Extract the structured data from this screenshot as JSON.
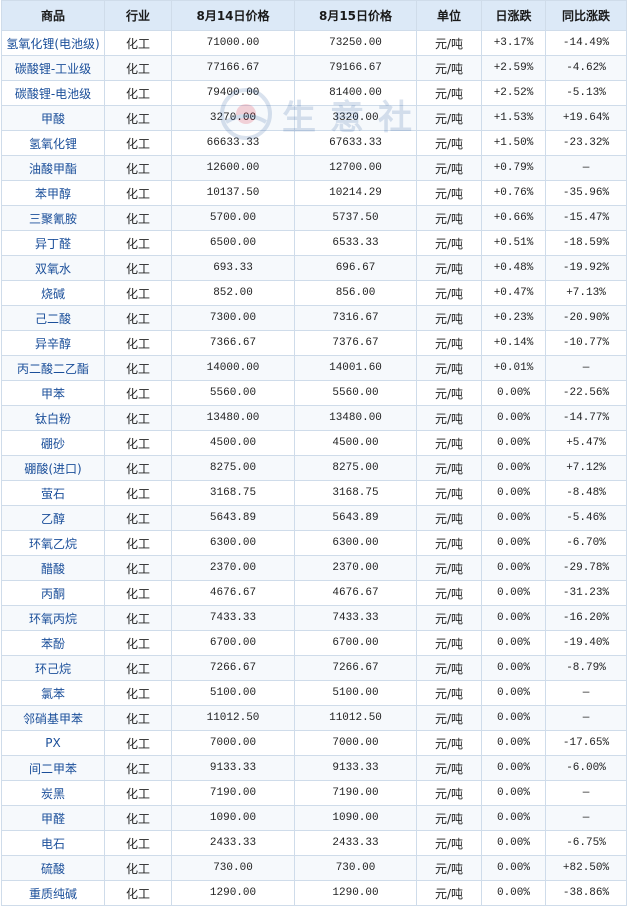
{
  "table": {
    "headers": [
      "商品",
      "行业",
      "8月14日价格",
      "8月15日价格",
      "单位",
      "日涨跌",
      "同比涨跌"
    ],
    "rows": [
      [
        "氢氧化锂(电池级)",
        "化工",
        "71000.00",
        "73250.00",
        "元/吨",
        "+3.17%",
        "-14.49%"
      ],
      [
        "碳酸锂-工业级",
        "化工",
        "77166.67",
        "79166.67",
        "元/吨",
        "+2.59%",
        "-4.62%"
      ],
      [
        "碳酸锂-电池级",
        "化工",
        "79400.00",
        "81400.00",
        "元/吨",
        "+2.52%",
        "-5.13%"
      ],
      [
        "甲酸",
        "化工",
        "3270.00",
        "3320.00",
        "元/吨",
        "+1.53%",
        "+19.64%"
      ],
      [
        "氢氧化锂",
        "化工",
        "66633.33",
        "67633.33",
        "元/吨",
        "+1.50%",
        "-23.32%"
      ],
      [
        "油酸甲酯",
        "化工",
        "12600.00",
        "12700.00",
        "元/吨",
        "+0.79%",
        "—"
      ],
      [
        "苯甲醇",
        "化工",
        "10137.50",
        "10214.29",
        "元/吨",
        "+0.76%",
        "-35.96%"
      ],
      [
        "三聚氰胺",
        "化工",
        "5700.00",
        "5737.50",
        "元/吨",
        "+0.66%",
        "-15.47%"
      ],
      [
        "异丁醛",
        "化工",
        "6500.00",
        "6533.33",
        "元/吨",
        "+0.51%",
        "-18.59%"
      ],
      [
        "双氧水",
        "化工",
        "693.33",
        "696.67",
        "元/吨",
        "+0.48%",
        "-19.92%"
      ],
      [
        "烧碱",
        "化工",
        "852.00",
        "856.00",
        "元/吨",
        "+0.47%",
        "+7.13%"
      ],
      [
        "己二酸",
        "化工",
        "7300.00",
        "7316.67",
        "元/吨",
        "+0.23%",
        "-20.90%"
      ],
      [
        "异辛醇",
        "化工",
        "7366.67",
        "7376.67",
        "元/吨",
        "+0.14%",
        "-10.77%"
      ],
      [
        "丙二酸二乙酯",
        "化工",
        "14000.00",
        "14001.60",
        "元/吨",
        "+0.01%",
        "—"
      ],
      [
        "甲苯",
        "化工",
        "5560.00",
        "5560.00",
        "元/吨",
        "0.00%",
        "-22.56%"
      ],
      [
        "钛白粉",
        "化工",
        "13480.00",
        "13480.00",
        "元/吨",
        "0.00%",
        "-14.77%"
      ],
      [
        "硼砂",
        "化工",
        "4500.00",
        "4500.00",
        "元/吨",
        "0.00%",
        "+5.47%"
      ],
      [
        "硼酸(进口)",
        "化工",
        "8275.00",
        "8275.00",
        "元/吨",
        "0.00%",
        "+7.12%"
      ],
      [
        "萤石",
        "化工",
        "3168.75",
        "3168.75",
        "元/吨",
        "0.00%",
        "-8.48%"
      ],
      [
        "乙醇",
        "化工",
        "5643.89",
        "5643.89",
        "元/吨",
        "0.00%",
        "-5.46%"
      ],
      [
        "环氧乙烷",
        "化工",
        "6300.00",
        "6300.00",
        "元/吨",
        "0.00%",
        "-6.70%"
      ],
      [
        "醋酸",
        "化工",
        "2370.00",
        "2370.00",
        "元/吨",
        "0.00%",
        "-29.78%"
      ],
      [
        "丙酮",
        "化工",
        "4676.67",
        "4676.67",
        "元/吨",
        "0.00%",
        "-31.23%"
      ],
      [
        "环氧丙烷",
        "化工",
        "7433.33",
        "7433.33",
        "元/吨",
        "0.00%",
        "-16.20%"
      ],
      [
        "苯酚",
        "化工",
        "6700.00",
        "6700.00",
        "元/吨",
        "0.00%",
        "-19.40%"
      ],
      [
        "环己烷",
        "化工",
        "7266.67",
        "7266.67",
        "元/吨",
        "0.00%",
        "-8.79%"
      ],
      [
        "氯苯",
        "化工",
        "5100.00",
        "5100.00",
        "元/吨",
        "0.00%",
        "—"
      ],
      [
        "邻硝基甲苯",
        "化工",
        "11012.50",
        "11012.50",
        "元/吨",
        "0.00%",
        "—"
      ],
      [
        "PX",
        "化工",
        "7000.00",
        "7000.00",
        "元/吨",
        "0.00%",
        "-17.65%"
      ],
      [
        "间二甲苯",
        "化工",
        "9133.33",
        "9133.33",
        "元/吨",
        "0.00%",
        "-6.00%"
      ],
      [
        "炭黑",
        "化工",
        "7190.00",
        "7190.00",
        "元/吨",
        "0.00%",
        "—"
      ],
      [
        "甲醛",
        "化工",
        "1090.00",
        "1090.00",
        "元/吨",
        "0.00%",
        "—"
      ],
      [
        "电石",
        "化工",
        "2433.33",
        "2433.33",
        "元/吨",
        "0.00%",
        "-6.75%"
      ],
      [
        "硫酸",
        "化工",
        "730.00",
        "730.00",
        "元/吨",
        "0.00%",
        "+82.50%"
      ],
      [
        "重质纯碱",
        "化工",
        "1290.00",
        "1290.00",
        "元/吨",
        "0.00%",
        "-38.86%"
      ]
    ]
  },
  "watermark": {
    "text": "生意社",
    "icon": "sunrise-logo-icon"
  },
  "colors": {
    "header_bg": "#dce9f7",
    "border": "#cfdcea",
    "link": "#1b4f9a",
    "up": "#d9001b",
    "down": "#0a8a16"
  }
}
